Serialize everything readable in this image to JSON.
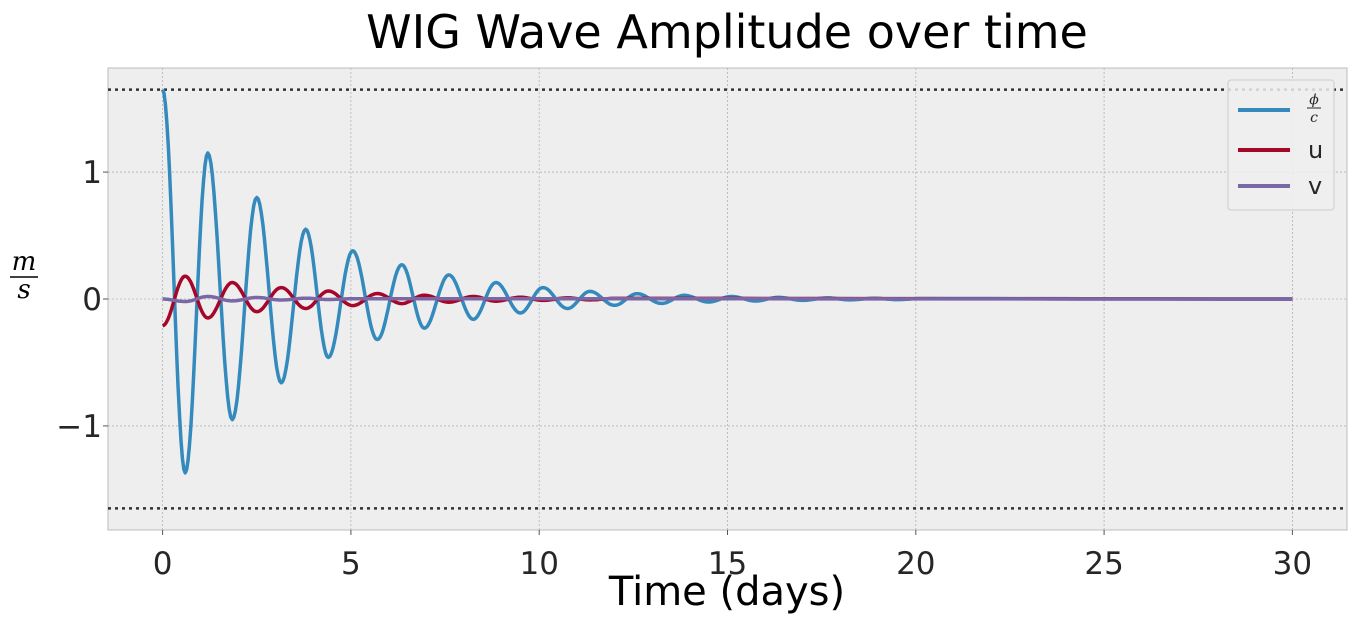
{
  "chart_data": {
    "type": "line",
    "title": "WIG Wave Amplitude over time",
    "xlabel": "Time (days)",
    "ylabel": {
      "numerator": "m",
      "denominator": "s"
    },
    "xlim": [
      -1.45,
      31.45
    ],
    "ylim": [
      -1.82,
      1.82
    ],
    "xticks": [
      0,
      5,
      10,
      15,
      20,
      25,
      30
    ],
    "yticks": [
      -1,
      0,
      1
    ],
    "ytick_labels": [
      "−1",
      "0",
      "1"
    ],
    "grid": true,
    "legend": {
      "placement": "top-right"
    },
    "reference_lines": [
      1.65,
      -1.65
    ],
    "series": [
      {
        "name": {
          "numerator": "ϕ",
          "denominator": "c"
        },
        "color": "#348abd",
        "x": [
          0,
          0.6,
          1.2,
          1.85,
          2.5,
          3.15,
          3.8,
          4.4,
          5.05,
          5.7,
          6.35,
          6.95,
          7.6,
          8.25,
          8.85,
          9.5,
          10.1,
          10.75,
          11.35,
          12.0,
          12.6,
          13.25,
          13.85,
          14.5,
          15.1,
          15.75,
          16.35,
          17.0,
          17.65,
          18.25,
          18.9,
          19.5,
          20.15,
          30
        ],
        "y": [
          1.65,
          -1.37,
          1.15,
          -0.95,
          0.8,
          -0.66,
          0.55,
          -0.46,
          0.38,
          -0.32,
          0.27,
          -0.23,
          0.19,
          -0.16,
          0.13,
          -0.11,
          0.09,
          -0.075,
          0.06,
          -0.05,
          0.042,
          -0.035,
          0.029,
          -0.024,
          0.02,
          -0.016,
          0.013,
          -0.011,
          0.009,
          -0.007,
          0.006,
          -0.005,
          0.004,
          0
        ]
      },
      {
        "name": "u",
        "color": "#a60628",
        "x": [
          0,
          0.6,
          1.2,
          1.85,
          2.5,
          3.15,
          3.8,
          4.4,
          5.05,
          5.7,
          6.35,
          6.95,
          7.6,
          8.25,
          8.85,
          9.5,
          10.1,
          10.75,
          11.35,
          12.0,
          30
        ],
        "y": [
          -0.21,
          0.18,
          -0.15,
          0.13,
          -0.1,
          0.09,
          -0.075,
          0.063,
          -0.052,
          0.043,
          -0.036,
          0.03,
          -0.025,
          0.02,
          -0.017,
          0.014,
          -0.011,
          0.009,
          -0.007,
          0.005,
          0
        ]
      },
      {
        "name": "v",
        "color": "#7a68a6",
        "x": [
          0,
          0.6,
          1.2,
          1.85,
          2.5,
          3.15,
          3.8,
          4.4,
          5.05,
          30
        ],
        "y": [
          0,
          -0.02,
          0.02,
          -0.015,
          0.012,
          -0.008,
          0.006,
          -0.004,
          0.002,
          0
        ]
      }
    ]
  }
}
